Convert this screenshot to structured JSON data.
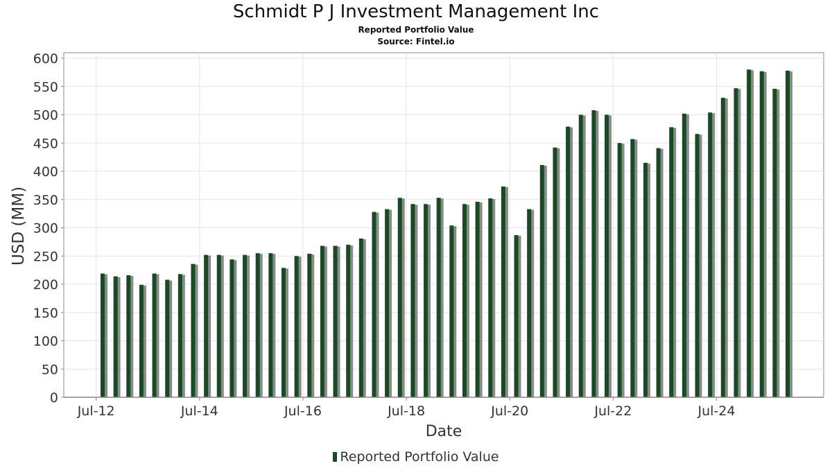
{
  "chart_data": {
    "type": "bar",
    "title": "Schmidt P J Investment Management Inc",
    "subtitle": "Reported Portfolio Value",
    "source": "Source: Fintel.io",
    "xlabel": "Date",
    "ylabel": "USD (MM)",
    "ylim": [
      0,
      600
    ],
    "yticks": [
      0,
      50,
      100,
      150,
      200,
      250,
      300,
      350,
      400,
      450,
      500,
      550,
      600
    ],
    "xticks": [
      "Jul-12",
      "Jul-14",
      "Jul-16",
      "Jul-18",
      "Jul-20",
      "Jul-22",
      "Jul-24"
    ],
    "grid": true,
    "legend_position": "bottom",
    "colors": {
      "bar": "#1a4a24",
      "bar_shadow": "#8a8a8a",
      "grid": "#e3e3e3",
      "axis": "#888888"
    },
    "series": [
      {
        "name": "Reported Portfolio Value",
        "values": [
          219,
          214,
          216,
          199,
          219,
          208,
          218,
          236,
          252,
          252,
          244,
          252,
          255,
          255,
          229,
          250,
          254,
          268,
          268,
          270,
          281,
          328,
          333,
          353,
          342,
          342,
          353,
          304,
          342,
          346,
          352,
          373,
          287,
          333,
          411,
          442,
          479,
          500,
          508,
          500,
          450,
          457,
          415,
          441,
          478,
          502,
          466,
          504,
          530,
          547,
          580,
          577,
          546,
          578
        ]
      }
    ]
  }
}
